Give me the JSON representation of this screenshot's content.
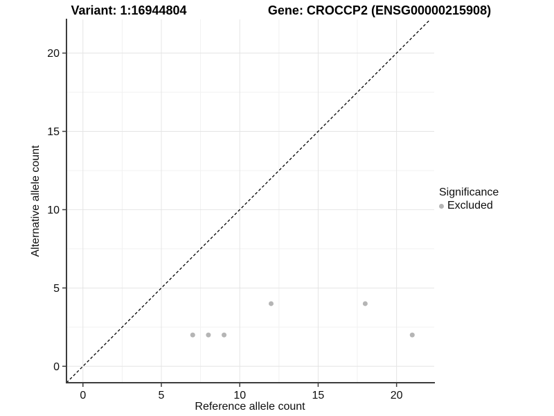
{
  "titles": {
    "variant": "Variant: 1:16944804",
    "gene": "Gene: CROCCP2 (ENSG00000215908)"
  },
  "chart_data": {
    "type": "scatter",
    "title_left": "Variant: 1:16944804",
    "title_right": "Gene: CROCCP2 (ENSG00000215908)",
    "xlabel": "Reference allele count",
    "ylabel": "Alternative allele count",
    "xticks": [
      0,
      5,
      10,
      15,
      20
    ],
    "yticks": [
      0,
      5,
      10,
      15,
      20
    ],
    "xlim": [
      -1.05,
      22.4
    ],
    "ylim": [
      -1.05,
      22.15
    ],
    "grid": true,
    "equal_aspect": true,
    "reference_line": {
      "type": "identity",
      "equation": "y = x",
      "style": "dashed",
      "color": "#000000"
    },
    "series": [
      {
        "name": "Excluded",
        "color": "#b5b5b5",
        "points": [
          [
            7,
            2
          ],
          [
            8,
            2
          ],
          [
            9,
            2
          ],
          [
            12,
            4
          ],
          [
            18,
            4
          ],
          [
            21,
            2
          ]
        ]
      }
    ],
    "legend": {
      "title": "Significance",
      "position": "right",
      "items": [
        {
          "label": "Excluded",
          "color": "#b5b5b5"
        }
      ]
    },
    "colors": {
      "background": "#ffffff",
      "major_grid": "#e4e4e4",
      "minor_grid": "#f1f1f1",
      "axis_line": "#3c3c3c",
      "tick_text": "#0d0d0d",
      "point": "#b5b5b5"
    }
  }
}
